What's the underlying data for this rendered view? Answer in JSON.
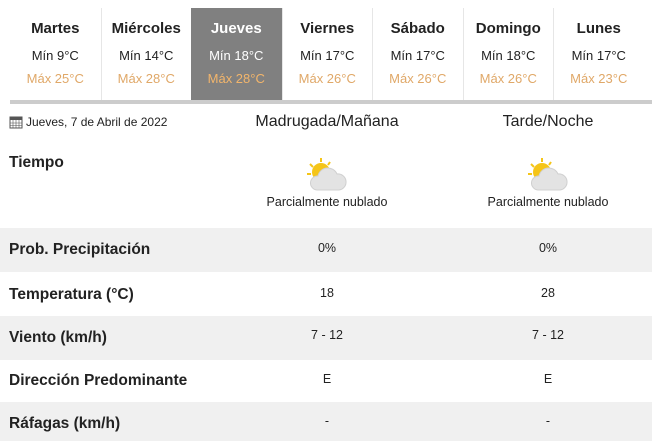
{
  "days": [
    {
      "name": "Martes",
      "min": "Mín 9°C",
      "max": "Máx 25°C"
    },
    {
      "name": "Miércoles",
      "min": "Mín 14°C",
      "max": "Máx 28°C"
    },
    {
      "name": "Jueves",
      "min": "Mín 18°C",
      "max": "Máx 28°C",
      "active": true
    },
    {
      "name": "Viernes",
      "min": "Mín 17°C",
      "max": "Máx 26°C"
    },
    {
      "name": "Sábado",
      "min": "Mín 17°C",
      "max": "Máx 26°C"
    },
    {
      "name": "Domingo",
      "min": "Mín 18°C",
      "max": "Máx 26°C"
    },
    {
      "name": "Lunes",
      "min": "Mín 17°C",
      "max": "Máx 23°C"
    }
  ],
  "date": "Jueves, 7 de Abril de 2022",
  "periods": [
    "Madrugada/Mañana",
    "Tarde/Noche"
  ],
  "weather": {
    "label": "Tiempo",
    "icon": "partly-cloudy-icon",
    "values": [
      "Parcialmente nublado",
      "Parcialmente nublado"
    ]
  },
  "rows": [
    {
      "label": "Prob. Precipitación",
      "values": [
        "0%",
        "0%"
      ]
    },
    {
      "label": "Temperatura (°C)",
      "values": [
        "18",
        "28"
      ]
    },
    {
      "label": "Viento (km/h)",
      "values": [
        "7 - 12",
        "7 - 12"
      ]
    },
    {
      "label": "Dirección Predominante",
      "values": [
        "E",
        "E"
      ]
    },
    {
      "label": "Ráfagas (km/h)",
      "values": [
        "-",
        "-"
      ]
    }
  ],
  "colors": {
    "active_tab": "#808080",
    "max_temp": "#e0a868",
    "stripe": "#f0f0f0"
  }
}
